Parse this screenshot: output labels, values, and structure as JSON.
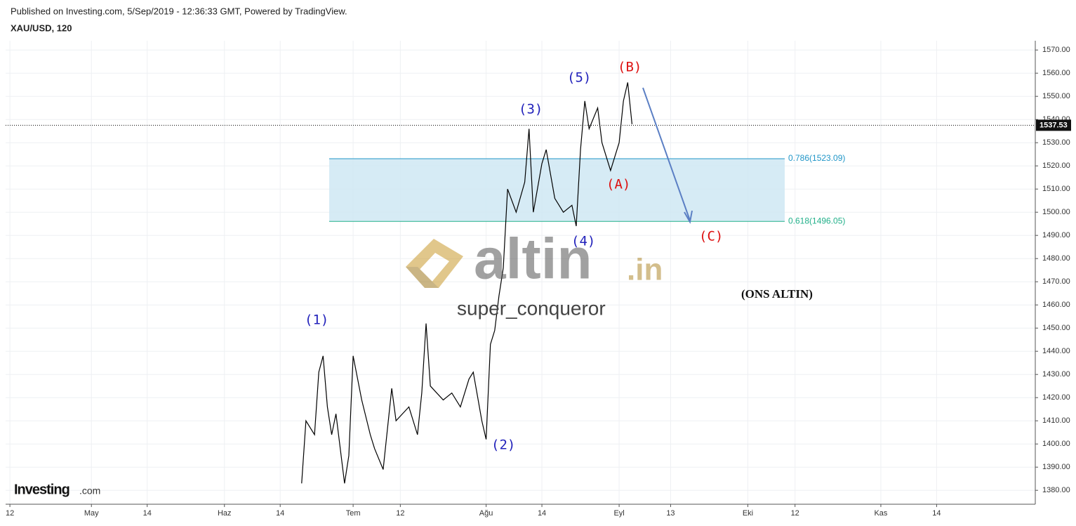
{
  "header": {
    "published": "Published on Investing.com, 5/Sep/2019 - 12:36:33 GMT, Powered by TradingView.",
    "symbol": "XAU/USD, 120"
  },
  "watermark": {
    "brand": "altin",
    "brand_suffix": ".in",
    "author": "super_conqueror",
    "logo": "Investing",
    "logo_suffix": ".com"
  },
  "chart_data": {
    "type": "line",
    "x": [
      "2019-06-19",
      "2019-06-20",
      "2019-06-22",
      "2019-06-23",
      "2019-06-24",
      "2019-06-25",
      "2019-06-26",
      "2019-06-27",
      "2019-06-29",
      "2019-06-30",
      "2019-07-01",
      "2019-07-03",
      "2019-07-05",
      "2019-07-06",
      "2019-07-08",
      "2019-07-10",
      "2019-07-11",
      "2019-07-14",
      "2019-07-16",
      "2019-07-17",
      "2019-07-18",
      "2019-07-19",
      "2019-07-22",
      "2019-07-24",
      "2019-07-26",
      "2019-07-28",
      "2019-07-29",
      "2019-07-31",
      "2019-08-01",
      "2019-08-02",
      "2019-08-03",
      "2019-08-04",
      "2019-08-05",
      "2019-08-06",
      "2019-08-08",
      "2019-08-10",
      "2019-08-11",
      "2019-08-12",
      "2019-08-14",
      "2019-08-15",
      "2019-08-17",
      "2019-08-19",
      "2019-08-21",
      "2019-08-22",
      "2019-08-23",
      "2019-08-24",
      "2019-08-25",
      "2019-08-27",
      "2019-08-28",
      "2019-08-30",
      "2019-09-01",
      "2019-09-02",
      "2019-09-03",
      "2019-09-04"
    ],
    "series": [
      {
        "name": "XAU/USD",
        "color": "#000000",
        "values": [
          1383,
          1410,
          1404,
          1431,
          1438,
          1416,
          1404,
          1413,
          1383,
          1395,
          1438,
          1419,
          1404,
          1398,
          1389,
          1424,
          1410,
          1416,
          1404,
          1422,
          1452,
          1425,
          1419,
          1422,
          1416,
          1428,
          1431,
          1410,
          1402,
          1443,
          1449,
          1464,
          1476,
          1510,
          1500,
          1513,
          1536,
          1500,
          1521,
          1527,
          1506,
          1500,
          1503,
          1494,
          1527,
          1548,
          1536,
          1545,
          1530,
          1518,
          1530,
          1548,
          1556,
          1538
        ]
      }
    ],
    "xlim": [
      "2019-04-11",
      "2019-12-07"
    ],
    "xticks": [
      {
        "value": "2019-04-12",
        "label": "12"
      },
      {
        "value": "2019-05-01",
        "label": "May"
      },
      {
        "value": "2019-05-14",
        "label": "14"
      },
      {
        "value": "2019-06-01",
        "label": "Haz"
      },
      {
        "value": "2019-06-14",
        "label": "14"
      },
      {
        "value": "2019-07-01",
        "label": "Tem"
      },
      {
        "value": "2019-07-12",
        "label": "12"
      },
      {
        "value": "2019-08-01",
        "label": "Ağu"
      },
      {
        "value": "2019-08-14",
        "label": "14"
      },
      {
        "value": "2019-09-01",
        "label": "Eyl"
      },
      {
        "value": "2019-09-13",
        "label": "13"
      },
      {
        "value": "2019-10-01",
        "label": "Eki"
      },
      {
        "value": "2019-10-12",
        "label": "12"
      },
      {
        "value": "2019-11-01",
        "label": "Kas"
      },
      {
        "value": "2019-11-14",
        "label": "14"
      }
    ],
    "ylim": [
      1374,
      1574
    ],
    "yticks": [
      {
        "value": 1380,
        "label": "1380.00"
      },
      {
        "value": 1390,
        "label": "1390.00"
      },
      {
        "value": 1400,
        "label": "1400.00"
      },
      {
        "value": 1410,
        "label": "1410.00"
      },
      {
        "value": 1420,
        "label": "1420.00"
      },
      {
        "value": 1430,
        "label": "1430.00"
      },
      {
        "value": 1440,
        "label": "1440.00"
      },
      {
        "value": 1450,
        "label": "1450.00"
      },
      {
        "value": 1460,
        "label": "1460.00"
      },
      {
        "value": 1470,
        "label": "1470.00"
      },
      {
        "value": 1480,
        "label": "1480.00"
      },
      {
        "value": 1490,
        "label": "1490.00"
      },
      {
        "value": 1500,
        "label": "1500.00"
      },
      {
        "value": 1510,
        "label": "1510.00"
      },
      {
        "value": 1520,
        "label": "1520.00"
      },
      {
        "value": 1530,
        "label": "1530.00"
      },
      {
        "value": 1540,
        "label": "1540.00"
      },
      {
        "value": 1550,
        "label": "1550.00"
      },
      {
        "value": 1560,
        "label": "1560.00"
      },
      {
        "value": 1570,
        "label": "1570.00"
      }
    ],
    "grid": true,
    "last_price": 1537.53,
    "fib_levels": [
      {
        "price": 1523.09,
        "label": "0.786(1523.09)",
        "color": "#2196c8"
      },
      {
        "price": 1496.05,
        "label": "0.618(1496.05)",
        "color": "#22b08a"
      }
    ],
    "fib_fill": "#cfe8f3",
    "annotations": {
      "wave1": "(1)",
      "wave2": "(2)",
      "wave3": "(3)",
      "wave4": "(4)",
      "wave5": "(5)",
      "waveA": "(A)",
      "waveB": "(B)",
      "waveC": "(C)",
      "note": "(ONS ALTIN)"
    }
  }
}
